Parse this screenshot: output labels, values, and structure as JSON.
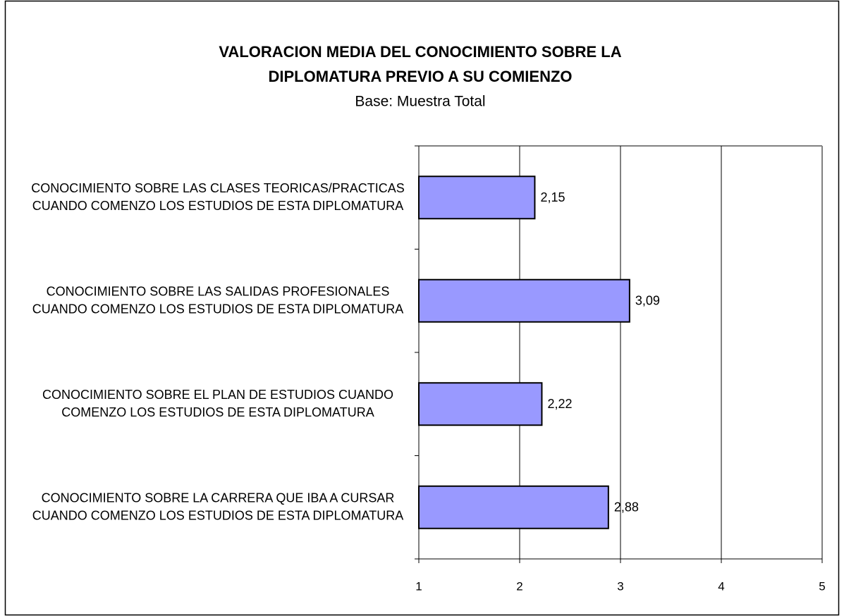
{
  "chart_data": {
    "type": "barh",
    "title": [
      "VALORACION MEDIA DEL CONOCIMIENTO SOBRE LA",
      "DIPLOMATURA PREVIO A SU COMIENZO"
    ],
    "subtitle": "Base: Muestra Total",
    "categories": [
      "CONOCIMIENTO SOBRE LAS CLASES TEORICAS/PRACTICAS CUANDO COMENZO LOS ESTUDIOS DE ESTA DIPLOMATURA",
      "CONOCIMIENTO SOBRE LAS SALIDAS PROFESIONALES CUANDO COMENZO LOS ESTUDIOS DE ESTA DIPLOMATURA",
      "CONOCIMIENTO SOBRE EL PLAN DE ESTUDIOS CUANDO COMENZO LOS ESTUDIOS DE ESTA DIPLOMATURA",
      "CONOCIMIENTO SOBRE LA CARRERA QUE IBA A CURSAR CUANDO COMENZO LOS ESTUDIOS DE ESTA DIPLOMATURA"
    ],
    "values": [
      2.15,
      3.09,
      2.22,
      2.88
    ],
    "value_labels": [
      "2,15",
      "3,09",
      "2,22",
      "2,88"
    ],
    "color": "#9999ff",
    "xlim": [
      1,
      5
    ],
    "xticks": [
      1,
      2,
      3,
      4,
      5
    ],
    "grid": true
  }
}
